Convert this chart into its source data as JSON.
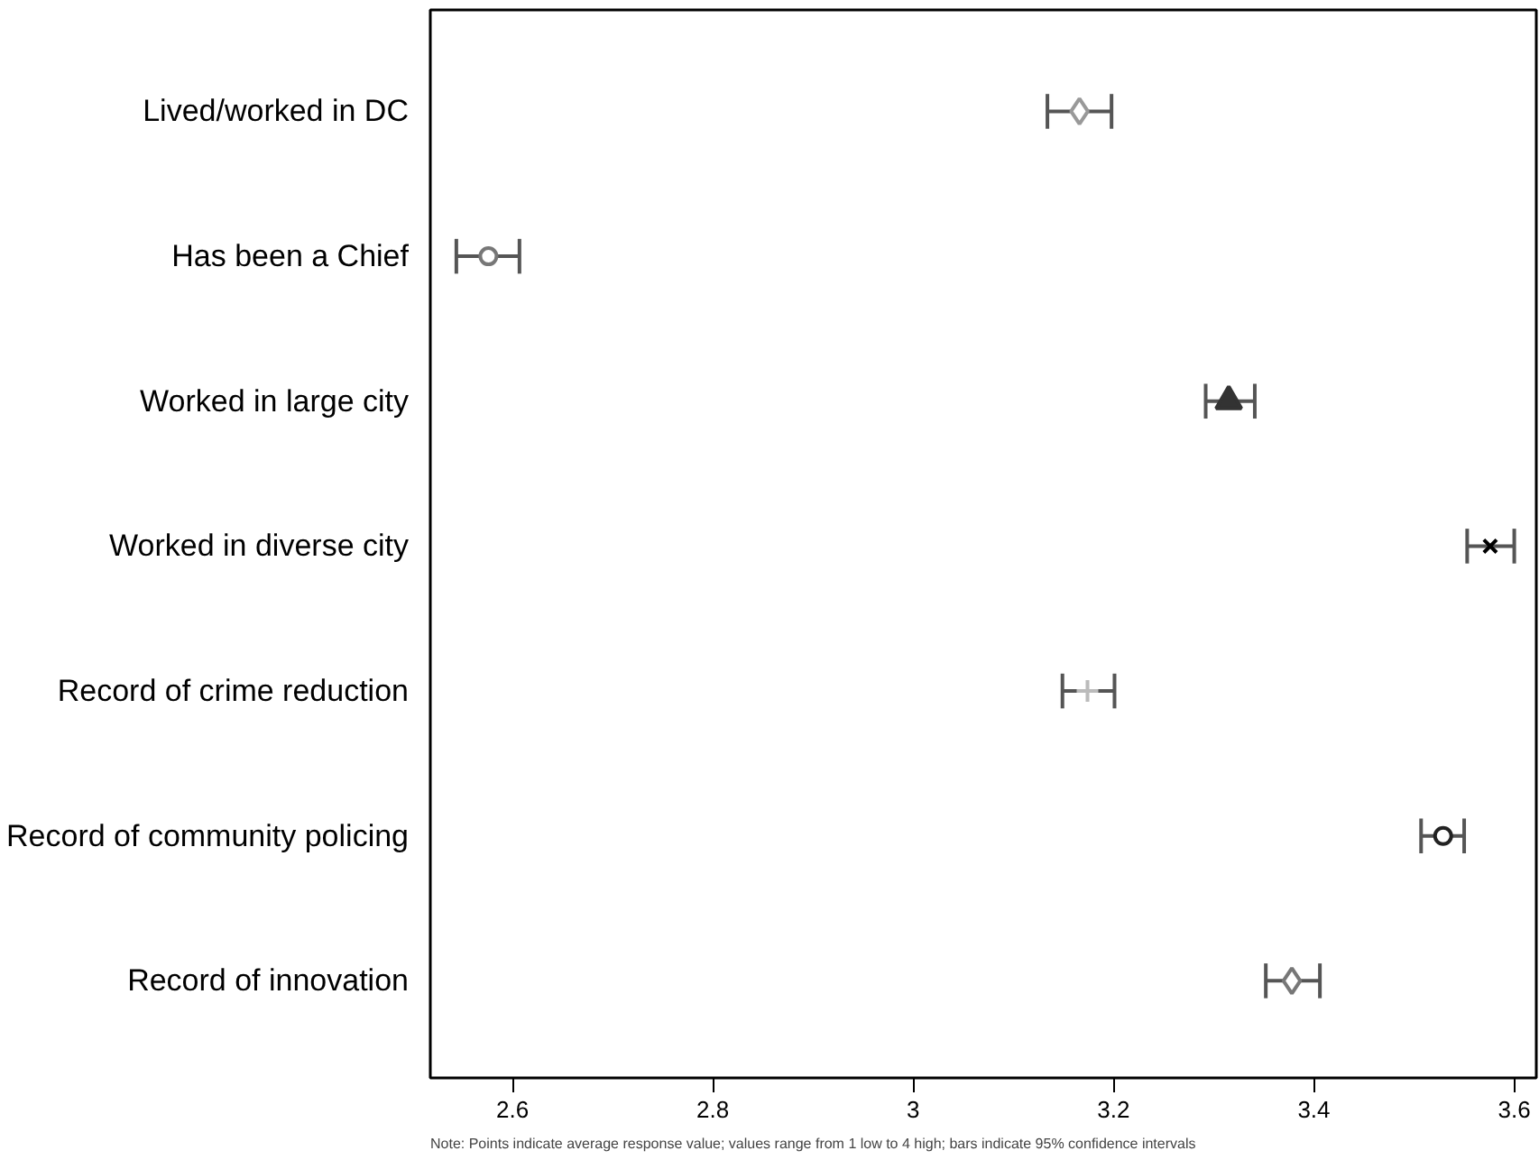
{
  "chart_data": {
    "type": "scatter",
    "orientation": "horizontal",
    "categories": [
      "Lived/worked in DC",
      "Has been a Chief",
      "Worked in large city",
      "Worked in diverse city",
      "Record of crime reduction",
      "Record of community policing",
      "Record of innovation"
    ],
    "xlim": [
      2.518,
      3.622
    ],
    "xticks": [
      2.6,
      2.8,
      3,
      3.2,
      3.4,
      3.6
    ],
    "grid": false,
    "series": [
      {
        "color": "#999999",
        "marker": "diamond",
        "values": [
          3.166,
          null,
          null,
          null,
          null,
          null,
          null
        ],
        "errors": [
          [
            3.134,
            3.198
          ],
          null,
          null,
          null,
          null,
          null,
          null
        ]
      },
      {
        "color": "#777777",
        "marker": "circle",
        "values": [
          null,
          2.576,
          null,
          null,
          null,
          null,
          null
        ],
        "errors": [
          null,
          [
            2.544,
            2.607
          ],
          null,
          null,
          null,
          null,
          null
        ]
      },
      {
        "color": "#333333",
        "marker": "triangle",
        "values": [
          null,
          null,
          3.315,
          null,
          null,
          null,
          null
        ],
        "errors": [
          null,
          null,
          [
            3.292,
            3.341
          ],
          null,
          null,
          null,
          null
        ]
      },
      {
        "color": "#000000",
        "marker": "x",
        "values": [
          null,
          null,
          null,
          3.576,
          null,
          null,
          null
        ],
        "errors": [
          null,
          null,
          null,
          [
            3.553,
            3.6
          ],
          null,
          null,
          null
        ]
      },
      {
        "color": "#bbbbbb",
        "marker": "cross",
        "values": [
          null,
          null,
          null,
          null,
          3.174,
          null,
          null
        ],
        "errors": [
          null,
          null,
          null,
          null,
          [
            3.149,
            3.201
          ],
          null,
          null
        ]
      },
      {
        "color": "#222222",
        "marker": "circle",
        "values": [
          null,
          null,
          null,
          null,
          null,
          3.529,
          null
        ],
        "errors": [
          null,
          null,
          null,
          null,
          null,
          [
            3.507,
            3.55
          ],
          null
        ]
      },
      {
        "color": "#777777",
        "marker": "diamond",
        "values": [
          null,
          null,
          null,
          null,
          null,
          null,
          3.378
        ],
        "errors": [
          null,
          null,
          null,
          null,
          null,
          null,
          [
            3.352,
            3.406
          ]
        ]
      }
    ],
    "annotations": [
      "Note: Points indicate average response value; values range from 1 low to 4 high; bars indicate 95% confidence intervals"
    ]
  }
}
